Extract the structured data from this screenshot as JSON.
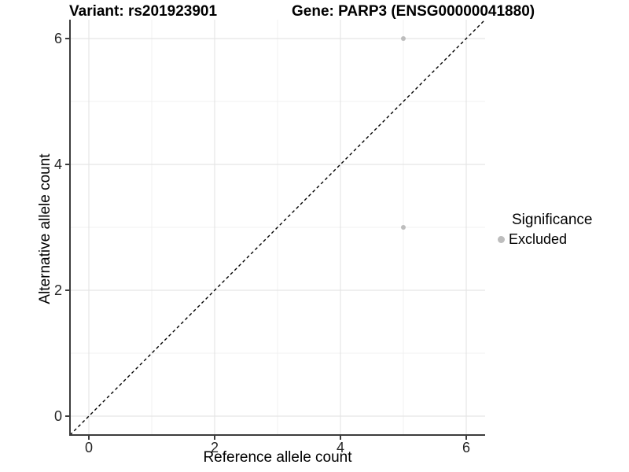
{
  "titles": {
    "left": "Variant: rs201923901",
    "right": "Gene: PARP3 (ENSG00000041880)"
  },
  "legend": {
    "title": "Significance",
    "items": [
      {
        "label": "Excluded",
        "color": "#BDBDBD"
      }
    ]
  },
  "colors": {
    "background": "#FFFFFF",
    "axis_line": "#3C3C3C",
    "grid_major": "#E5E5E5",
    "grid_minor": "#F0F0F0",
    "reference_line": "#000000",
    "point_excluded": "#BDBDBD",
    "tick_text": "#262626"
  },
  "chart_data": {
    "type": "scatter",
    "title": "Variant: rs201923901 | Gene: PARP3 (ENSG00000041880)",
    "xlabel": "Reference allele count",
    "ylabel": "Alternative allele count",
    "xlim": [
      -0.3,
      6.3
    ],
    "ylim": [
      -0.3,
      6.3
    ],
    "x_ticks": [
      0,
      2,
      4,
      6
    ],
    "y_ticks": [
      0,
      2,
      4,
      6
    ],
    "x_minor": [
      1,
      3,
      5
    ],
    "y_minor": [
      1,
      3,
      5
    ],
    "grid": true,
    "legend_position": "right",
    "series": [
      {
        "name": "Excluded",
        "color": "#BDBDBD",
        "points": [
          {
            "x": 5,
            "y": 6
          },
          {
            "x": 5,
            "y": 3
          }
        ]
      }
    ],
    "reference_line": {
      "type": "identity",
      "equation": "y = x",
      "style": "dashed",
      "color": "#000000"
    }
  }
}
